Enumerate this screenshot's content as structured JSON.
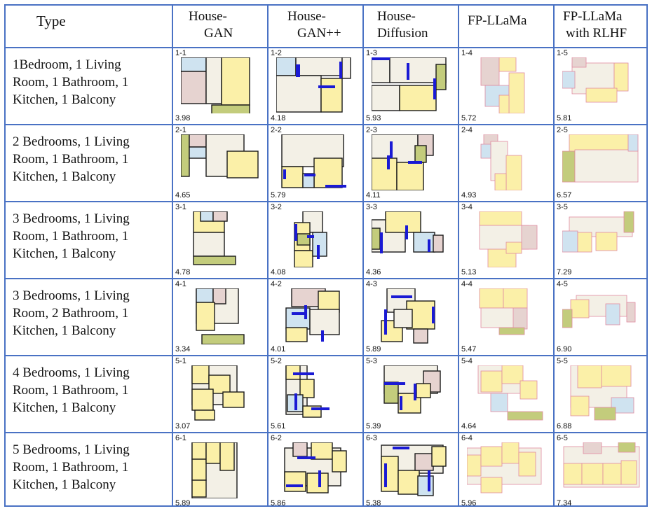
{
  "header": {
    "type": "Type",
    "methods": [
      [
        "House-",
        "GAN"
      ],
      [
        "House-",
        "GAN++"
      ],
      [
        "House-",
        "Diffusion"
      ],
      [
        "FP-LLaMa"
      ],
      [
        "FP-LLaMa",
        "with RLHF"
      ]
    ]
  },
  "rows": [
    {
      "type_lines": [
        "1Bedroom, 1 Living",
        "Room, 1 Bathroom, 1",
        "Kitchen, 1 Balcony"
      ],
      "cells": [
        {
          "id": "1-1",
          "score": "3.98"
        },
        {
          "id": "1-2",
          "score": "4.18"
        },
        {
          "id": "1-3",
          "score": "5.93"
        },
        {
          "id": "1-4",
          "score": "5.72"
        },
        {
          "id": "1-5",
          "score": "5.81"
        }
      ]
    },
    {
      "type_lines": [
        "2 Bedrooms, 1 Living",
        "Room, 1 Bathroom, 1",
        "Kitchen,  1 Balcony"
      ],
      "cells": [
        {
          "id": "2-1",
          "score": "4.65"
        },
        {
          "id": "2-2",
          "score": "5.79"
        },
        {
          "id": "2-3",
          "score": "4.11"
        },
        {
          "id": "2-4",
          "score": "4.93"
        },
        {
          "id": "2-5",
          "score": "6.57"
        }
      ]
    },
    {
      "type_lines": [
        "3 Bedrooms, 1 Living",
        "Room, 1 Bathroom, 1",
        "Kitchen, 1 Balcony"
      ],
      "cells": [
        {
          "id": "3-1",
          "score": "4.78"
        },
        {
          "id": "3-2",
          "score": "4.08"
        },
        {
          "id": "3-3",
          "score": "4.36"
        },
        {
          "id": "3-4",
          "score": "5.13"
        },
        {
          "id": "3-5",
          "score": "7.29"
        }
      ]
    },
    {
      "type_lines": [
        "3 Bedrooms, 1 Living",
        "Room, 2 Bathroom, 1",
        "Kitchen,  1 Balcony"
      ],
      "cells": [
        {
          "id": "4-1",
          "score": "3.34"
        },
        {
          "id": "4-2",
          "score": "4.01"
        },
        {
          "id": "4-3",
          "score": "5.89"
        },
        {
          "id": "4-4",
          "score": "5.47"
        },
        {
          "id": "4-5",
          "score": "6.90"
        }
      ]
    },
    {
      "type_lines": [
        "4 Bedrooms, 1 Living",
        "Room, 1 Bathroom, 1",
        "Kitchen, 1 Balcony"
      ],
      "cells": [
        {
          "id": "5-1",
          "score": "3.07"
        },
        {
          "id": "5-2",
          "score": "5.61"
        },
        {
          "id": "5-3",
          "score": "5.39"
        },
        {
          "id": "5-4",
          "score": "4.64"
        },
        {
          "id": "5-5",
          "score": "6.88"
        }
      ]
    },
    {
      "type_lines": [
        "5 Bedrooms, 1 Living",
        "Room, 1 Bathroom, 1",
        "Kitchen,  1 Balcony"
      ],
      "cells": [
        {
          "id": "6-1",
          "score": "5.89"
        },
        {
          "id": "6-2",
          "score": "5.86"
        },
        {
          "id": "6-3",
          "score": "5.38"
        },
        {
          "id": "6-4",
          "score": "5.96"
        },
        {
          "id": "6-5",
          "score": "7.34"
        }
      ]
    }
  ],
  "colors": {
    "grid_line": "#4a72c4",
    "bedroom": "#fbf0a8",
    "living_room": "#f3f0e6",
    "bathroom": "#cfe3f0",
    "kitchen": "#e6d3d0",
    "balcony": "#c3cc7c",
    "door": "#1a1ad4",
    "wall_dark": "#1a1a1a",
    "wall_llm": "#e08aa0"
  }
}
